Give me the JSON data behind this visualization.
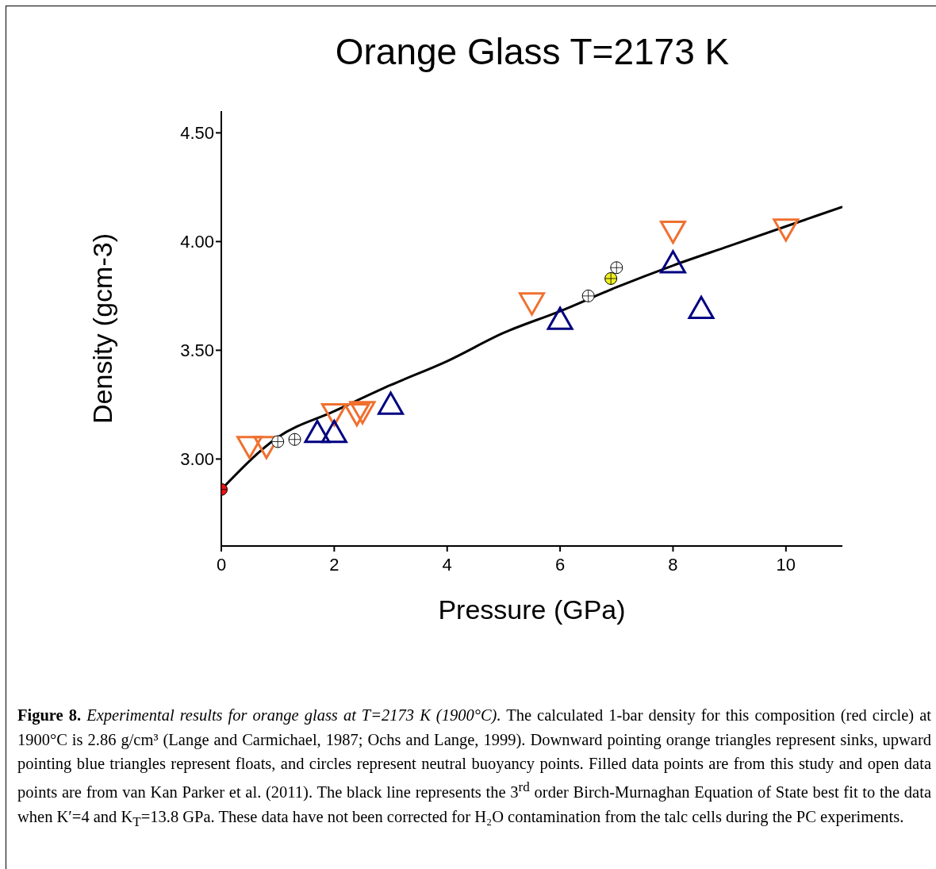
{
  "chart_data": {
    "type": "scatter",
    "title": "Orange Glass T=2173 K",
    "xlabel": "Pressure (GPa)",
    "ylabel": "Density (gcm-3)",
    "xlim": [
      0,
      11
    ],
    "ylim": [
      2.6,
      4.6
    ],
    "xticks": [
      0,
      2,
      4,
      6,
      8,
      10
    ],
    "yticks": [
      {
        "value": 3,
        "label": "3.00"
      },
      {
        "value": 3.5,
        "label": "3.50"
      },
      {
        "value": 4,
        "label": "4.00"
      },
      {
        "value": 4.5,
        "label": "4.50"
      }
    ],
    "grid": false,
    "legend": false,
    "series": [
      {
        "type": "line",
        "color": "#000000",
        "marker": "none",
        "line_style": "solid",
        "x": [
          0,
          1,
          2,
          3,
          4,
          5,
          6,
          7,
          8,
          9,
          10,
          11
        ],
        "values": [
          2.86,
          3.1,
          3.22,
          3.34,
          3.45,
          3.58,
          3.68,
          3.79,
          3.89,
          3.98,
          4.07,
          4.16
        ]
      },
      {
        "color": "#f07030",
        "marker": "triangle-down",
        "x": [
          0.5,
          0.8,
          2.0,
          2.4,
          2.5,
          5.5
        ],
        "values": [
          3.06,
          3.06,
          3.21,
          3.21,
          3.22,
          3.72
        ]
      },
      {
        "color": "#000080",
        "marker": "triangle",
        "x": [
          1.7,
          2.0,
          3.0,
          6.0,
          8.5
        ],
        "values": [
          3.12,
          3.12,
          3.25,
          3.64,
          3.69
        ]
      },
      {
        "color": "#f07030",
        "marker": "triangle-down",
        "x": [
          8.0,
          10.0
        ],
        "values": [
          4.05,
          4.06
        ]
      },
      {
        "color": "#000080",
        "marker": "triangle",
        "x": [
          8.0
        ],
        "values": [
          3.9
        ]
      },
      {
        "color": "#ffffff",
        "marker": "circle",
        "x": [
          1.0,
          1.3,
          6.5,
          7.0
        ],
        "values": [
          3.08,
          3.09,
          3.75,
          3.88
        ]
      },
      {
        "color": "#f0f020",
        "marker": "circle",
        "x": [
          6.9
        ],
        "values": [
          3.83
        ]
      },
      {
        "color": "#ee1111",
        "marker": "circle",
        "x": [
          0
        ],
        "values": [
          2.86
        ]
      }
    ],
    "annotations": [
      "Figure 8.",
      "Experimental results for orange glass at T=2173 K (1900°C).",
      "The calculated 1-bar density for this composition (red circle) at 1900°C is 2.86 g/cm³ (Lange and Carmichael, 1987; Ochs and Lange, 1999). Downward pointing orange triangles represent sinks, upward pointing blue triangles represent floats, and circles represent neutral buoyancy points. Filled data points are from this study and open data points are from van Kan Parker et al. (2011). The black line represents the 3$^{rd}$ order Birch-Murnaghan Equation of State best fit to the data when K′=4 and K$_{T}$=13.8 GPa. These data have not been corrected for H₂O contamination from the talc cells during the PC experiments."
    ]
  }
}
